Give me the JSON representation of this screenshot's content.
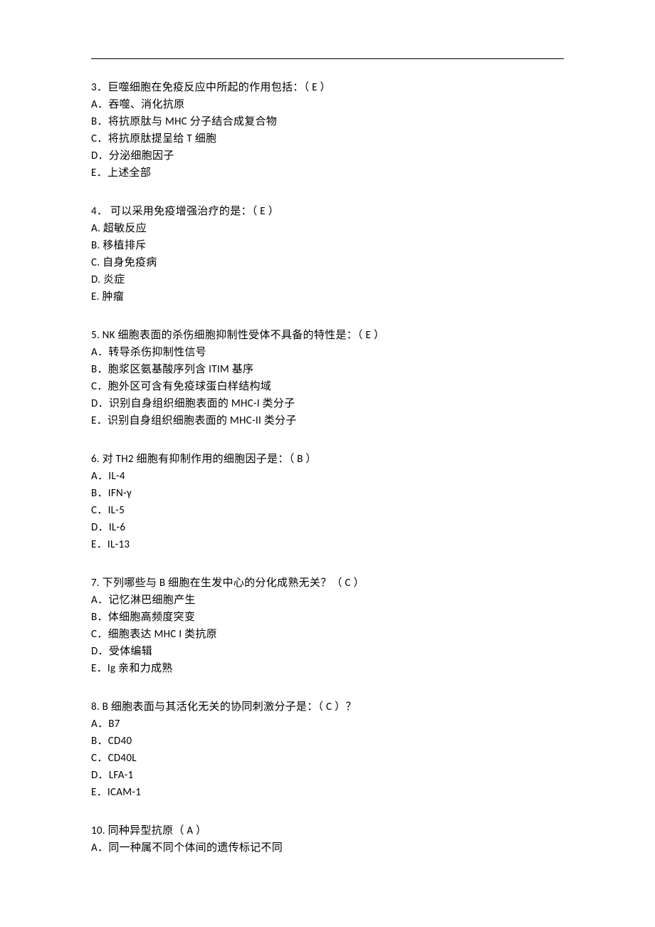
{
  "questions": [
    {
      "id": "q3",
      "stem": "3．巨噬细胞在免疫反应中所起的作用包括：（ E ）",
      "options": [
        "A．吞噬、消化抗原",
        "B．将抗原肽与 MHC 分子结合成复合物",
        "C．将抗原肽提呈给 T 细胞",
        "D．分泌细胞因子",
        "E．上述全部"
      ]
    },
    {
      "id": "q4",
      "stem": "4．  可以采用免疫增强治疗的是：（ E ）",
      "options": [
        "A.    超敏反应",
        "B.    移植排斥",
        "C.     自身免疫病",
        "D.    炎症",
        "E.    肿瘤"
      ]
    },
    {
      "id": "q5",
      "stem": "5.    NK 细胞表面的杀伤细胞抑制性受体不具备的特性是：（ E  ）",
      "options": [
        "A．转导杀伤抑制性信号",
        "B．胞浆区氨基酸序列含 ITIM 基序",
        "C．胞外区可含有免疫球蛋白样结构域",
        "D．识别自身组织细胞表面的 MHC-I 类分子",
        "E．识别自身组织细胞表面的 MHC-II 类分子"
      ]
    },
    {
      "id": "q6",
      "stem": "6. 对 TH2 细胞有抑制作用的细胞因子是：（ B ）",
      "options": [
        "A．IL-4",
        "B．IFN-γ",
        "C．IL-5",
        "D．IL-6",
        "E．IL-13"
      ]
    },
    {
      "id": "q7",
      "stem": "7. 下列哪些与 B 细胞在生发中心的分化成熟无关？（ C ）",
      "options": [
        "A．记忆淋巴细胞产生",
        "B．体细胞高频度突变",
        "C．细胞表达 MHC I 类抗原",
        "D．受体编辑",
        "E．Ig 亲和力成熟"
      ]
    },
    {
      "id": "q8",
      "stem": "8. B 细胞表面与其活化无关的协同刺激分子是：（ C ）？",
      "options": [
        "A．B7",
        "B．CD40",
        "C．CD40L",
        "D．LFA-1",
        "E．ICAM-1"
      ]
    },
    {
      "id": "q10",
      "stem": "10.     同种异型抗原（ A ）",
      "options": [
        "A．同一种属不同个体间的遗传标记不同"
      ],
      "last": true
    }
  ]
}
